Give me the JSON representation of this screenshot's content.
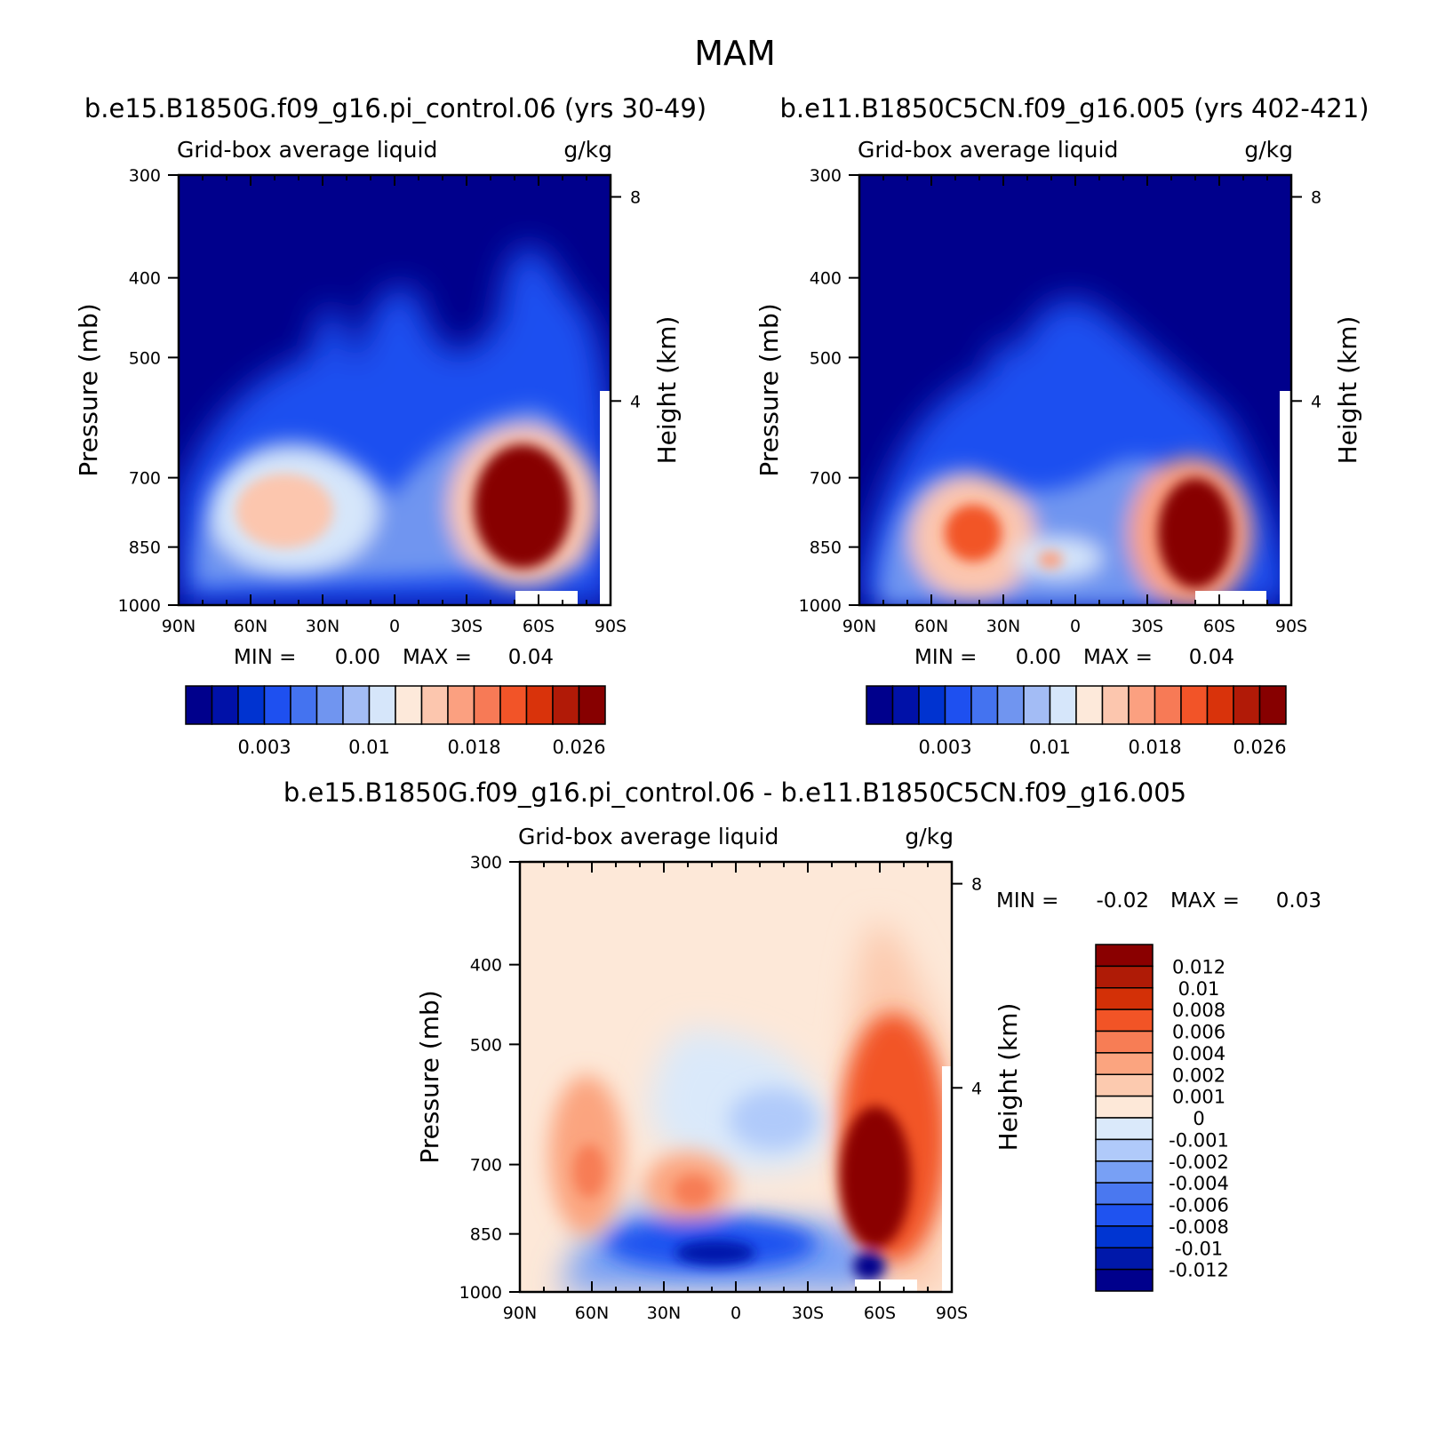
{
  "figure": {
    "title": "MAM"
  },
  "colors": {
    "abs_levels": [
      "#00008C",
      "#0011A8",
      "#0033D0",
      "#1E50F0",
      "#4473F0",
      "#7095F0",
      "#A3BCF5",
      "#D6E6FA",
      "#FDE9DA",
      "#FCC6AE",
      "#FBA080",
      "#F77A56",
      "#F25428",
      "#D9330B",
      "#B11A07",
      "#870000"
    ],
    "diff_levels": [
      "#00008C",
      "#0018AA",
      "#0035D2",
      "#1F53F0",
      "#4A78F0",
      "#78A0F5",
      "#B0CAFA",
      "#DAE9FA",
      "#FDE8D8",
      "#FCCAAF",
      "#FBA47F",
      "#F77D55",
      "#F25426",
      "#D33007",
      "#AF1B06",
      "#8A0000"
    ]
  },
  "chart_data": [
    {
      "type": "heatmap",
      "title": "b.e15.B1850G.f09_g16.pi_control.06 (yrs 30-49)",
      "subtitle_left": "Grid-box average liquid",
      "subtitle_right": "g/kg",
      "ylabel": "Pressure (mb)",
      "ylabel_right": "Height (km)",
      "x_ticks": [
        "90N",
        "60N",
        "30N",
        "0",
        "30S",
        "60S",
        "90S"
      ],
      "y_ticks": [
        "300",
        "400",
        "500",
        "700",
        "850",
        "1000"
      ],
      "y_ticks_right": [
        "8",
        "4"
      ],
      "min_label": "MIN =",
      "min_value": "0.00",
      "max_label": "MAX =",
      "max_value": "0.04",
      "colorbar_labels": [
        "0.003",
        "0.01",
        "0.018",
        "0.026"
      ],
      "features": [
        {
          "lat": 44,
          "p": 840,
          "value": 0.014
        },
        {
          "lat": 10,
          "p": 860,
          "value": 0.01
        },
        {
          "lat": -55,
          "p": 835,
          "value": 0.04
        },
        {
          "lat": 0,
          "p": 560,
          "value": 0.002
        },
        {
          "lat": -50,
          "p": 480,
          "value": 0.002
        }
      ]
    },
    {
      "type": "heatmap",
      "title": "b.e11.B1850C5CN.f09_g16.005 (yrs 402-421)",
      "subtitle_left": "Grid-box average liquid",
      "subtitle_right": "g/kg",
      "ylabel": "Pressure (mb)",
      "ylabel_right": "Height (km)",
      "x_ticks": [
        "90N",
        "60N",
        "30N",
        "0",
        "30S",
        "60S",
        "90S"
      ],
      "y_ticks": [
        "300",
        "400",
        "500",
        "700",
        "850",
        "1000"
      ],
      "y_ticks_right": [
        "8",
        "4"
      ],
      "min_label": "MIN =",
      "min_value": "0.00",
      "max_label": "MAX =",
      "max_value": "0.04",
      "colorbar_labels": [
        "0.003",
        "0.01",
        "0.018",
        "0.026"
      ],
      "features": [
        {
          "lat": 42,
          "p": 870,
          "value": 0.022
        },
        {
          "lat": 8,
          "p": 910,
          "value": 0.012
        },
        {
          "lat": -52,
          "p": 860,
          "value": 0.04
        },
        {
          "lat": 0,
          "p": 560,
          "value": 0.002
        }
      ]
    },
    {
      "type": "heatmap",
      "title": "b.e15.B1850G.f09_g16.pi_control.06 - b.e11.B1850C5CN.f09_g16.005",
      "subtitle_left": "Grid-box average liquid",
      "subtitle_right": "g/kg",
      "ylabel": "Pressure (mb)",
      "ylabel_right": "Height (km)",
      "x_ticks": [
        "90N",
        "60N",
        "30N",
        "0",
        "30S",
        "60S",
        "90S"
      ],
      "y_ticks": [
        "300",
        "400",
        "500",
        "700",
        "850",
        "1000"
      ],
      "y_ticks_right": [
        "8",
        "4"
      ],
      "min_label": "MIN =",
      "min_value": "-0.02",
      "max_label": "MAX =",
      "max_value": "0.03",
      "colorbar_labels": [
        "0.012",
        "0.01",
        "0.008",
        "0.006",
        "0.004",
        "0.002",
        "0.001",
        "0",
        "-0.001",
        "-0.002",
        "-0.004",
        "-0.006",
        "-0.008",
        "-0.01",
        "-0.012"
      ],
      "features": [
        {
          "lat": 62,
          "p": 810,
          "value": 0.006
        },
        {
          "lat": 15,
          "p": 840,
          "value": 0.006
        },
        {
          "lat": -60,
          "p": 820,
          "value": 0.03
        },
        {
          "lat": 10,
          "p": 925,
          "value": -0.012
        },
        {
          "lat": -58,
          "p": 960,
          "value": -0.02
        },
        {
          "lat": 5,
          "p": 720,
          "value": -0.002
        }
      ]
    }
  ]
}
